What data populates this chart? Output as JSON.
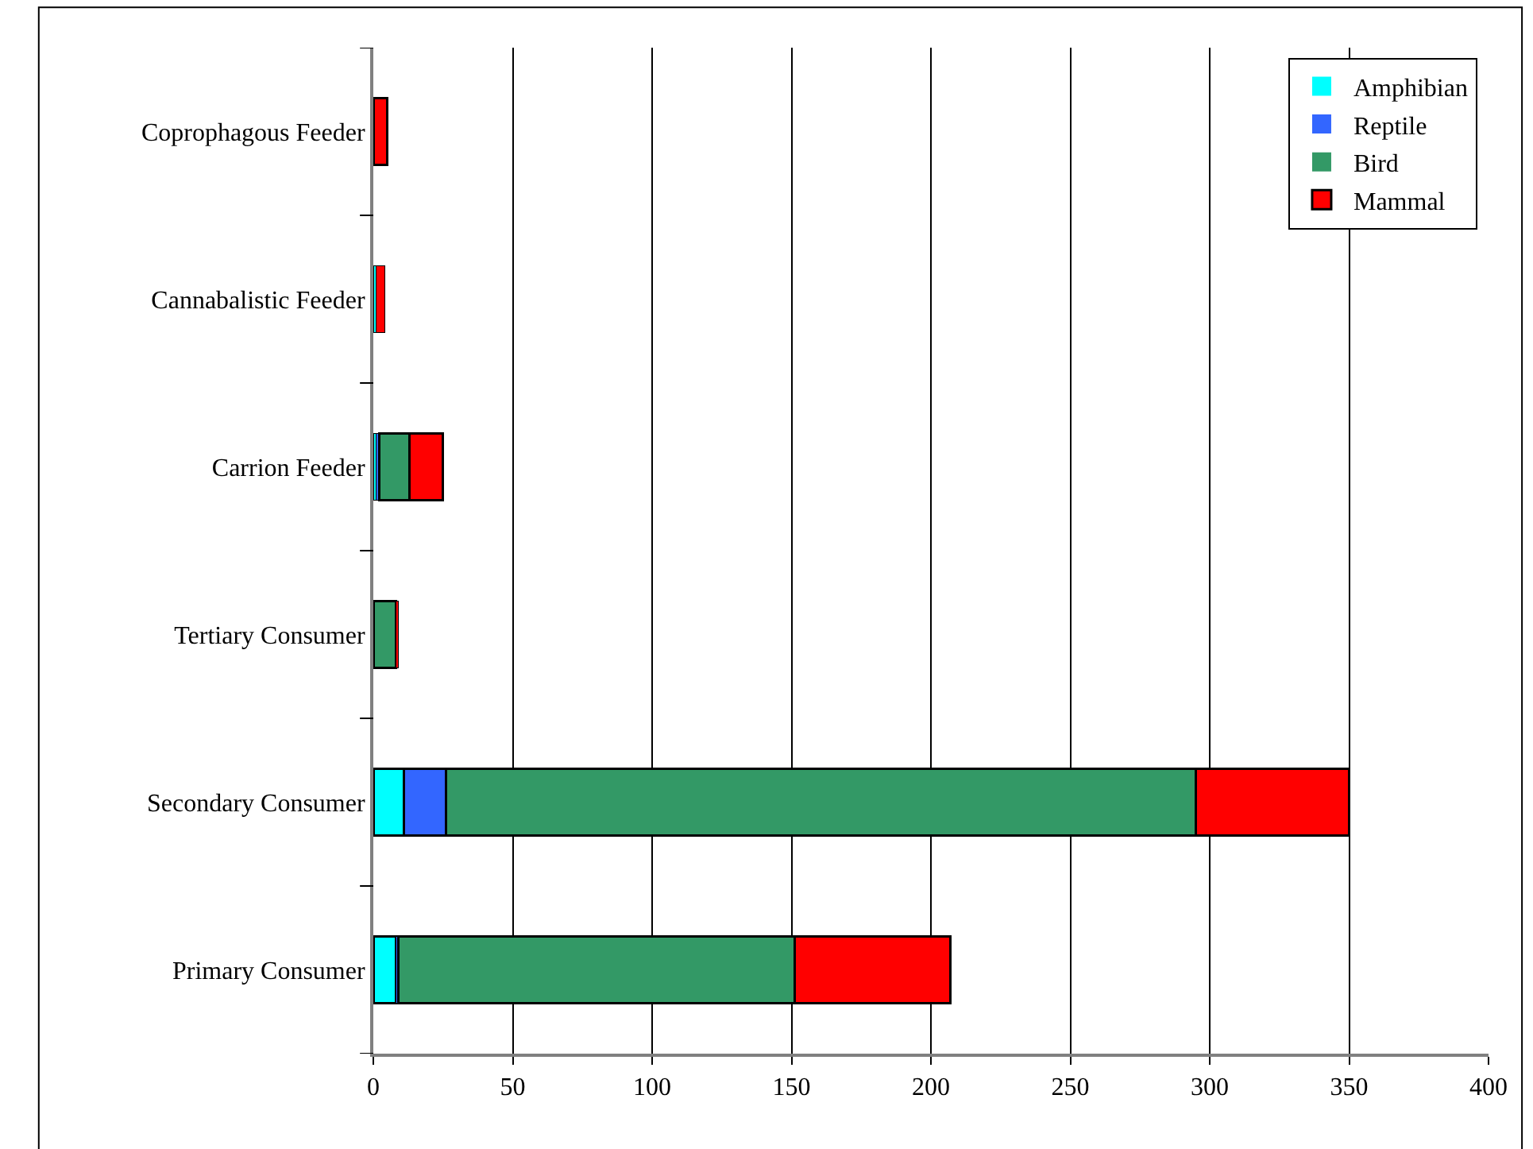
{
  "chart_data": {
    "type": "bar",
    "orientation": "horizontal",
    "stacked": true,
    "grid": "x",
    "legend": "top right",
    "categories": [
      "Coprophagous Feeder",
      "Cannabalistic Feeder",
      "Carrion Feeder",
      "Tertiary Consumer",
      "Secondary Consumer",
      "Primary Consumer"
    ],
    "series": [
      {
        "name": "Amphibian",
        "color": "#00ffff",
        "values": [
          0,
          1,
          1,
          0,
          11,
          8
        ]
      },
      {
        "name": "Reptile",
        "color": "#3366ff",
        "values": [
          0,
          0,
          1,
          0,
          15,
          1
        ]
      },
      {
        "name": "Bird",
        "color": "#339966",
        "values": [
          0,
          0,
          11,
          8,
          269,
          142
        ]
      },
      {
        "name": "Mammal",
        "color": "#ff0000",
        "values": [
          5,
          3,
          12,
          1,
          55,
          56
        ]
      }
    ],
    "xlim": [
      0,
      400
    ],
    "xticks": [
      0,
      50,
      100,
      150,
      200,
      250,
      300,
      350,
      400
    ]
  }
}
